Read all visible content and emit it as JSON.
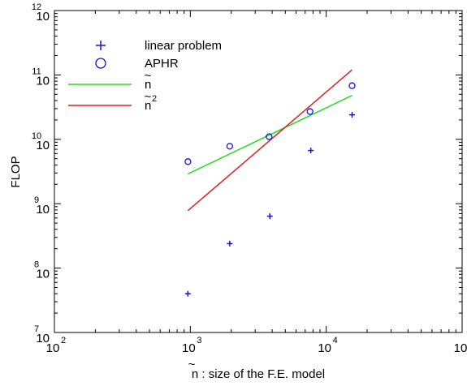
{
  "chart_data": {
    "type": "scatter",
    "title": "",
    "xlabel": "n : size of the F.E. model",
    "xlabel_tilde": "~",
    "ylabel": "FLOP",
    "x_scale": "log",
    "y_scale": "log",
    "xlim": [
      100,
      100000
    ],
    "ylim": [
      10000000,
      1000000000000
    ],
    "x_ticks": [
      {
        "base": "10",
        "exp": "2",
        "value": 100
      },
      {
        "base": "10",
        "exp": "3",
        "value": 1000
      },
      {
        "base": "10",
        "exp": "4",
        "value": 10000
      },
      {
        "base": "10",
        "exp": "5",
        "value": 100000
      }
    ],
    "y_ticks": [
      {
        "base": "10",
        "exp": "7",
        "value": 10000000
      },
      {
        "base": "10",
        "exp": "8",
        "value": 100000000
      },
      {
        "base": "10",
        "exp": "9",
        "value": 1000000000
      },
      {
        "base": "10",
        "exp": "10",
        "value": 10000000000
      },
      {
        "base": "10",
        "exp": "11",
        "value": 100000000000
      },
      {
        "base": "10",
        "exp": "12",
        "value": 1000000000000
      }
    ],
    "grid": false,
    "legend_position": "top-left",
    "series": [
      {
        "name": "linear problem",
        "marker": "plus",
        "color": "#1515c8",
        "points": [
          {
            "x": 960,
            "y": 40000000
          },
          {
            "x": 1950,
            "y": 240000000
          },
          {
            "x": 3850,
            "y": 640000000
          },
          {
            "x": 7700,
            "y": 6700000000
          },
          {
            "x": 15500,
            "y": 24000000000
          }
        ]
      },
      {
        "name": "APHR",
        "marker": "circle",
        "color": "#1515c8",
        "points": [
          {
            "x": 960,
            "y": 4500000000
          },
          {
            "x": 1950,
            "y": 7800000000
          },
          {
            "x": 3800,
            "y": 11000000000
          },
          {
            "x": 7600,
            "y": 27000000000
          },
          {
            "x": 15500,
            "y": 68000000000
          }
        ]
      },
      {
        "name": "n",
        "name_accent": "~",
        "marker": "line",
        "color": "#22dd22",
        "points": [
          {
            "x": 960,
            "y": 2900000000
          },
          {
            "x": 15500,
            "y": 48000000000
          }
        ]
      },
      {
        "name": "n",
        "name_accent": "~",
        "name_superscript": "2",
        "marker": "line",
        "color": "#dd2222",
        "points": [
          {
            "x": 960,
            "y": 780000000
          },
          {
            "x": 15500,
            "y": 120000000000
          }
        ]
      }
    ]
  }
}
